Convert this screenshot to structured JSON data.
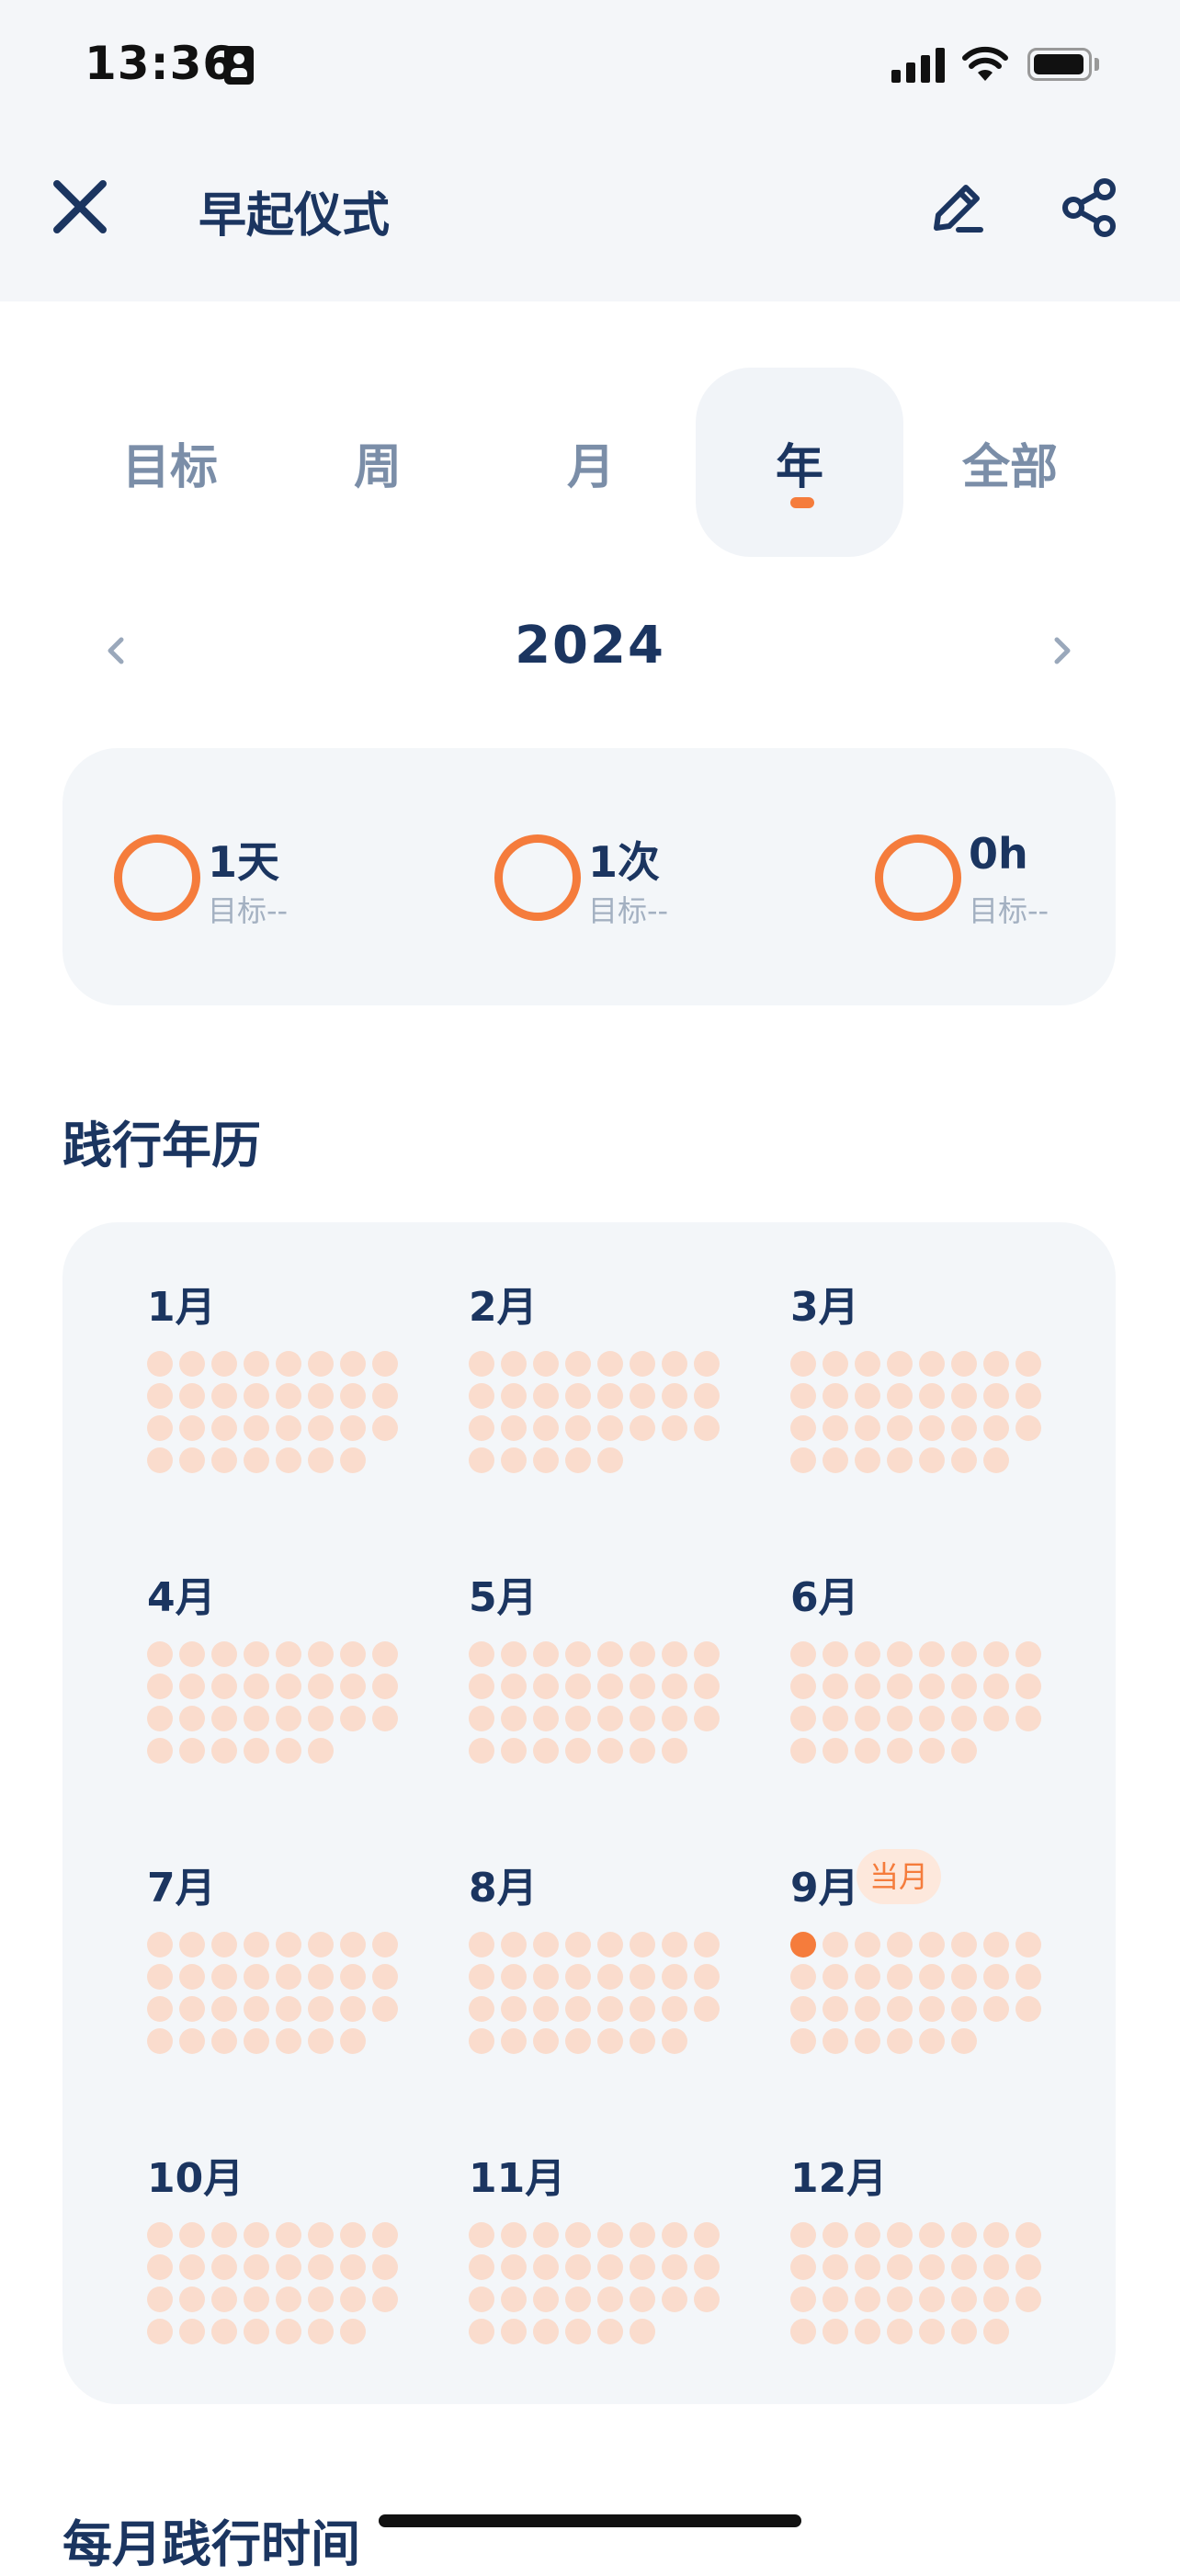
{
  "status": {
    "time": "13:36"
  },
  "nav": {
    "title": "早起仪式",
    "close_icon": "close-icon",
    "edit_icon": "edit-pencil-icon",
    "share_icon": "share-icon"
  },
  "tabs": [
    {
      "label": "目标",
      "active": false
    },
    {
      "label": "周",
      "active": false
    },
    {
      "label": "月",
      "active": false
    },
    {
      "label": "年",
      "active": true
    },
    {
      "label": "全部",
      "active": false
    }
  ],
  "year_selector": {
    "year": "2024",
    "prev_icon": "chevron-left-icon",
    "next_icon": "chevron-right-icon"
  },
  "summary": [
    {
      "value": "1天",
      "goal": "目标--"
    },
    {
      "value": "1次",
      "goal": "目标--"
    },
    {
      "value": "0h",
      "goal": "目标--"
    }
  ],
  "calendar_section": {
    "title": "践行年历",
    "months": [
      {
        "label": "1月",
        "days": 31
      },
      {
        "label": "2月",
        "days": 29
      },
      {
        "label": "3月",
        "days": 31
      },
      {
        "label": "4月",
        "days": 30
      },
      {
        "label": "5月",
        "days": 31
      },
      {
        "label": "6月",
        "days": 30
      },
      {
        "label": "7月",
        "days": 31
      },
      {
        "label": "8月",
        "days": 31
      },
      {
        "label": "9月",
        "days": 30,
        "badge": "当月",
        "completed_days": [
          1
        ]
      },
      {
        "label": "10月",
        "days": 31
      },
      {
        "label": "11月",
        "days": 30
      },
      {
        "label": "12月",
        "days": 31
      }
    ]
  },
  "next_section": {
    "title": "每月践行时间"
  },
  "colors": {
    "accent": "#f57c3c",
    "dot_empty": "#fadccd",
    "text_primary": "#1b3560",
    "text_muted": "#7b8ea8",
    "card_bg": "#f3f6f9"
  }
}
